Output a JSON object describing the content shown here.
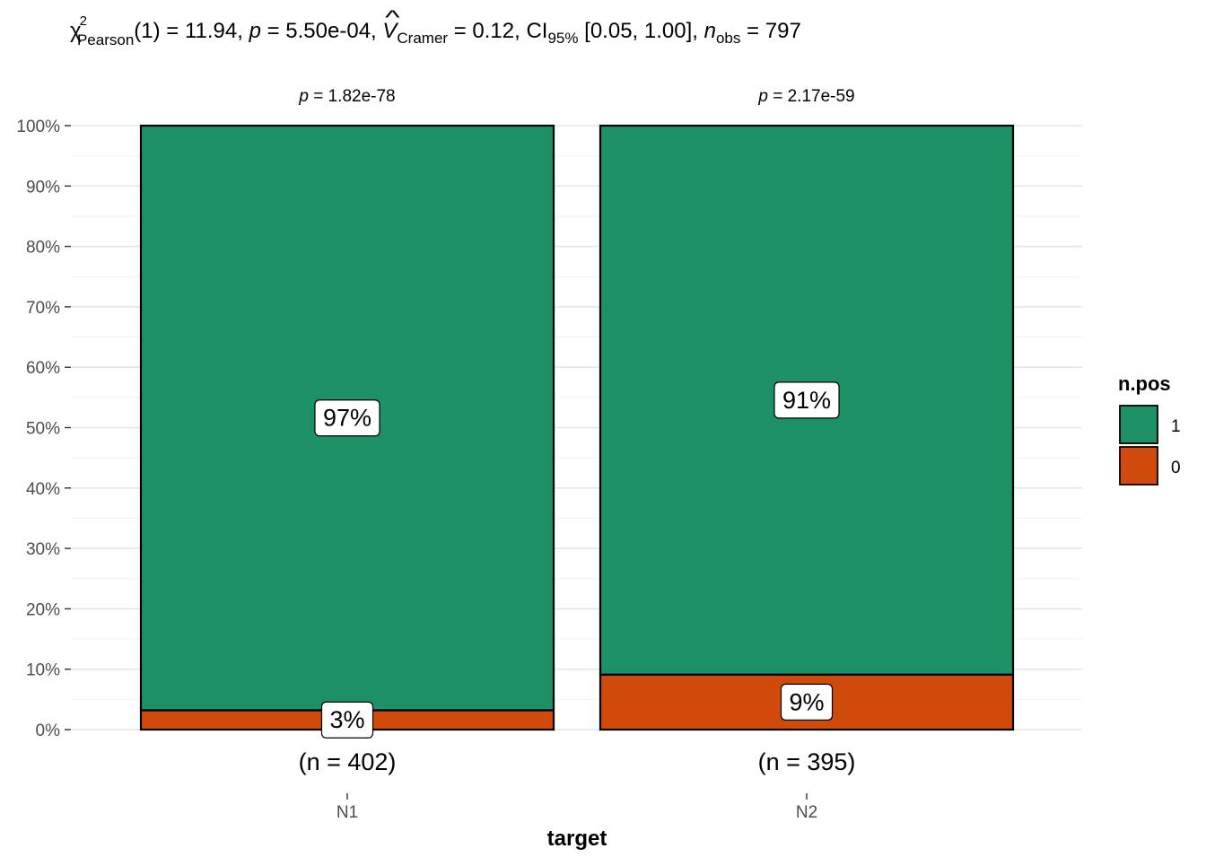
{
  "chart_data": {
    "type": "bar",
    "subtitle_parts": {
      "chi": "χ",
      "chi_sup": "2",
      "chi_sub": "Pearson",
      "df_stat": "(1) = 11.94, ",
      "p_sym": "p",
      "p_val": " = 5.50e-04, ",
      "v_sym": "V",
      "v_hat": "^",
      "v_sub": "Cramer",
      "v_val": " = 0.12, CI",
      "ci_sub": "95%",
      "ci_val": " [0.05, 1.00], ",
      "n_sym": "n",
      "n_sub": "obs",
      "n_val": " = 797"
    },
    "xlabel": "target",
    "ylabel": "",
    "ylim": [
      0,
      100
    ],
    "y_ticks": [
      "0%",
      "10%",
      "20%",
      "30%",
      "40%",
      "50%",
      "60%",
      "70%",
      "80%",
      "90%",
      "100%"
    ],
    "y_tick_values": [
      0,
      10,
      20,
      30,
      40,
      50,
      60,
      70,
      80,
      90,
      100
    ],
    "categories": [
      "N1",
      "N2"
    ],
    "category_counts": [
      "(n = 402)",
      "(n = 395)"
    ],
    "category_pvalues": [
      {
        "sym": "p",
        "val": " = 1.82e-78"
      },
      {
        "sym": "p",
        "val": " = 2.17e-59"
      }
    ],
    "stacked": true,
    "series": [
      {
        "name": "0",
        "color": "#D04A0B",
        "values": [
          3.2,
          9.1
        ],
        "labels": [
          "3%",
          "9%"
        ]
      },
      {
        "name": "1",
        "color": "#1E9066",
        "values": [
          96.8,
          90.9
        ],
        "labels": [
          "97%",
          "91%"
        ]
      }
    ],
    "legend": {
      "title": "n.pos",
      "position": "right",
      "entries": [
        {
          "label": "1",
          "color": "#1E9066"
        },
        {
          "label": "0",
          "color": "#D04A0B"
        }
      ]
    },
    "grid": true
  }
}
